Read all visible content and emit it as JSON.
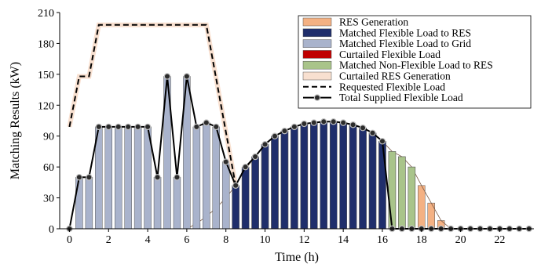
{
  "chart_data": {
    "type": "bar",
    "xlabel": "Time (h)",
    "ylabel": "Matching Results (kW)",
    "xlim": [
      -0.5,
      23.75
    ],
    "ylim": [
      0,
      210
    ],
    "x_ticks": [
      0,
      2,
      4,
      6,
      8,
      10,
      12,
      14,
      16,
      18,
      20,
      22
    ],
    "y_ticks": [
      0,
      30,
      60,
      90,
      120,
      150,
      180,
      210
    ],
    "bar_step_h": 0.5,
    "legend_position": "top-right",
    "colors": {
      "res_generation": "#f4b183",
      "matched_flex_res": "#1f2e6b",
      "matched_flex_grid": "#a9b3cc",
      "curtailed_flex": "#c00000",
      "matched_nonflex_res": "#a9c48a",
      "curtailed_res": "#f8e0d0",
      "requested": "#000000",
      "total_supplied": "#000000"
    },
    "series": [
      {
        "name": "RES Generation",
        "kind": "bar",
        "x": [
          6.0,
          6.5,
          7.0,
          7.5,
          8.0,
          8.5,
          9.0,
          9.5,
          10.0,
          10.5,
          11.0,
          11.5,
          12.0,
          12.5,
          13.0,
          13.5,
          14.0,
          14.5,
          15.0,
          15.5,
          16.0,
          16.5,
          17.0,
          17.5,
          18.0,
          18.5,
          19.0
        ],
        "values": [
          0,
          5,
          12,
          20,
          30,
          42,
          58,
          70,
          82,
          90,
          95,
          99,
          102,
          103,
          104,
          104,
          103,
          101,
          98,
          93,
          85,
          75,
          70,
          60,
          42,
          25,
          8
        ]
      },
      {
        "name": "Matched Flexible Load to RES",
        "kind": "bar",
        "x": [
          8.5,
          9.0,
          9.5,
          10.0,
          10.5,
          11.0,
          11.5,
          12.0,
          12.5,
          13.0,
          13.5,
          14.0,
          14.5,
          15.0,
          15.5,
          16.0
        ],
        "values": [
          42,
          60,
          70,
          82,
          90,
          95,
          99,
          102,
          103,
          104,
          104,
          103,
          101,
          98,
          93,
          85
        ]
      },
      {
        "name": "Matched Flexible Load to Grid",
        "kind": "bar",
        "x": [
          0.5,
          1.0,
          1.5,
          2.0,
          2.5,
          3.0,
          3.5,
          4.0,
          4.5,
          5.0,
          5.5,
          6.0,
          6.5,
          7.0,
          7.5,
          8.0
        ],
        "values": [
          50,
          50,
          99,
          99,
          99,
          99,
          99,
          99,
          50,
          148,
          50,
          148,
          99,
          103,
          99,
          65
        ]
      },
      {
        "name": "Curtailed Flexible Load",
        "kind": "bar",
        "x": [],
        "values": []
      },
      {
        "name": "Matched Non-Flexible Load to RES",
        "kind": "bar",
        "x": [
          16.5,
          17.0,
          17.5
        ],
        "values": [
          75,
          70,
          60
        ]
      },
      {
        "name": "Curtailed RES Generation",
        "kind": "bar",
        "x": [],
        "values": []
      },
      {
        "name": "Requested Flexible Load",
        "kind": "line",
        "x": [
          0,
          0.5,
          1.0,
          1.5,
          7.0,
          8.5
        ],
        "values": [
          99,
          148,
          148,
          198,
          198,
          42
        ]
      },
      {
        "name": "Total Supplied Flexible Load",
        "kind": "line",
        "x": [
          0,
          0.5,
          1.0,
          1.5,
          2.0,
          2.5,
          3.0,
          3.5,
          4.0,
          4.5,
          5.0,
          5.5,
          6.0,
          6.5,
          7.0,
          7.5,
          8.0,
          8.5,
          9.0,
          9.5,
          10.0,
          10.5,
          11.0,
          11.5,
          12.0,
          12.5,
          13.0,
          13.5,
          14.0,
          14.5,
          15.0,
          15.5,
          16.0,
          16.5,
          17.0,
          17.5,
          18.0,
          18.5,
          19.0,
          19.5,
          20.0,
          20.5,
          21.0,
          21.5,
          22.0,
          22.5,
          23.0,
          23.5
        ],
        "values": [
          0,
          50,
          50,
          99,
          99,
          99,
          99,
          99,
          99,
          50,
          148,
          50,
          148,
          99,
          103,
          99,
          65,
          42,
          60,
          70,
          82,
          90,
          95,
          99,
          102,
          103,
          104,
          104,
          103,
          101,
          98,
          93,
          85,
          0,
          0,
          0,
          0,
          0,
          0,
          0,
          0,
          0,
          0,
          0,
          0,
          0,
          0,
          0
        ]
      }
    ]
  }
}
